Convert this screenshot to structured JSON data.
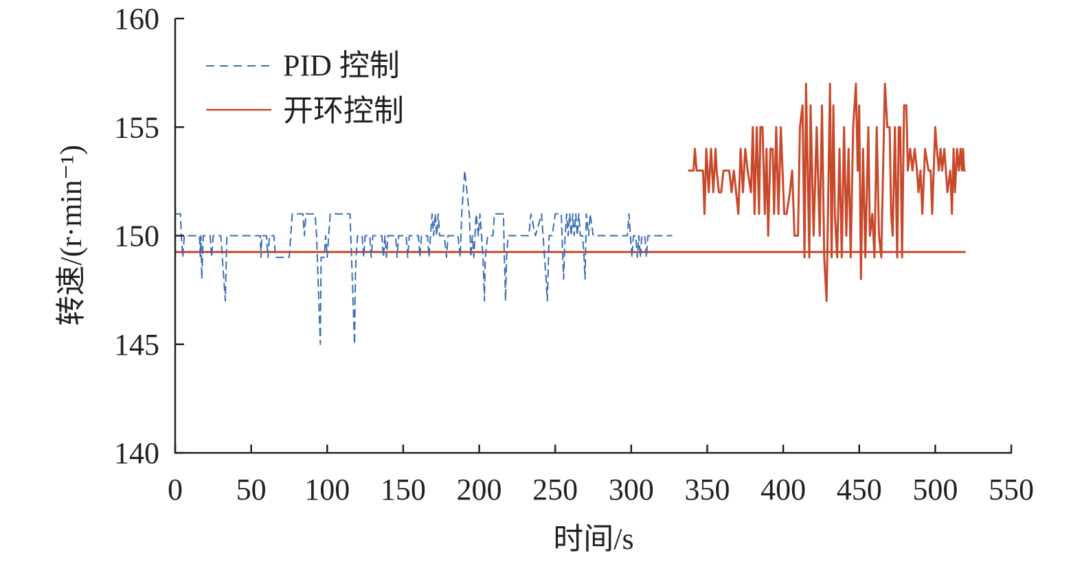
{
  "chart_data": {
    "type": "line",
    "xlabel": "时间/s",
    "ylabel": "转速/(r·min⁻¹)",
    "xlim": [
      0,
      550
    ],
    "ylim": [
      140,
      160
    ],
    "xticks": [
      "0",
      "50",
      "100",
      "150",
      "200",
      "250",
      "300",
      "350",
      "400",
      "450",
      "500",
      "550"
    ],
    "yticks": [
      "140",
      "145",
      "150",
      "155",
      "160"
    ],
    "grid": false,
    "legend_position": "top-left",
    "series": [
      {
        "name": "PID 控制",
        "color": "#3a6db3",
        "style": "dashed",
        "points": [
          [
            0,
            151
          ],
          [
            3.5,
            151
          ],
          [
            4,
            150
          ],
          [
            5,
            149
          ],
          [
            6,
            150
          ],
          [
            16,
            150
          ],
          [
            16.5,
            149
          ],
          [
            17,
            150
          ],
          [
            17.5,
            148
          ],
          [
            18,
            149
          ],
          [
            18.5,
            150
          ],
          [
            23,
            150
          ],
          [
            24,
            149
          ],
          [
            25,
            150
          ],
          [
            30,
            150
          ],
          [
            31,
            149
          ],
          [
            32,
            148
          ],
          [
            33,
            147
          ],
          [
            34,
            150
          ],
          [
            56,
            150
          ],
          [
            56.5,
            149
          ],
          [
            57,
            150
          ],
          [
            60,
            150
          ],
          [
            61,
            149
          ],
          [
            62,
            150
          ],
          [
            65,
            150
          ],
          [
            66,
            149
          ],
          [
            75,
            149
          ],
          [
            76,
            150
          ],
          [
            77,
            151
          ],
          [
            84,
            151
          ],
          [
            85,
            150
          ],
          [
            86,
            151
          ],
          [
            92,
            151
          ],
          [
            93,
            150
          ],
          [
            93.5,
            149
          ],
          [
            94,
            148
          ],
          [
            94.5,
            147
          ],
          [
            95,
            146
          ],
          [
            95.5,
            145
          ],
          [
            96,
            149
          ],
          [
            98,
            149
          ],
          [
            99,
            150
          ],
          [
            100,
            149
          ],
          [
            102,
            151
          ],
          [
            115,
            151
          ],
          [
            116,
            149
          ],
          [
            116.5,
            148
          ],
          [
            117,
            147
          ],
          [
            117.5,
            146
          ],
          [
            118,
            145
          ],
          [
            118.5,
            148
          ],
          [
            119,
            149
          ],
          [
            120,
            150
          ],
          [
            123,
            150
          ],
          [
            124,
            149
          ],
          [
            125,
            150
          ],
          [
            128,
            150
          ],
          [
            129,
            149
          ],
          [
            130,
            150
          ],
          [
            136,
            150
          ],
          [
            137,
            149
          ],
          [
            138,
            150
          ],
          [
            139,
            149
          ],
          [
            140,
            150
          ],
          [
            145,
            150
          ],
          [
            146,
            149
          ],
          [
            147,
            150
          ],
          [
            152,
            150
          ],
          [
            153,
            149
          ],
          [
            154,
            150
          ],
          [
            160,
            150
          ],
          [
            161,
            149
          ],
          [
            162,
            150
          ],
          [
            166,
            150
          ],
          [
            167,
            149
          ],
          [
            168,
            150
          ],
          [
            169,
            151
          ],
          [
            170,
            150
          ],
          [
            171,
            151
          ],
          [
            172,
            150
          ],
          [
            173,
            151
          ],
          [
            174,
            150
          ],
          [
            177,
            150
          ],
          [
            178.5,
            149
          ],
          [
            179.5,
            150
          ],
          [
            186,
            150
          ],
          [
            187.5,
            149
          ],
          [
            188.5,
            151
          ],
          [
            189.5,
            152
          ],
          [
            190.5,
            153
          ],
          [
            192,
            152
          ],
          [
            193.5,
            151
          ],
          [
            194.5,
            149
          ],
          [
            195.5,
            150
          ],
          [
            196.5,
            149
          ],
          [
            198,
            151
          ],
          [
            199.5,
            150
          ],
          [
            200.5,
            151
          ],
          [
            201.5,
            150
          ],
          [
            202.5,
            149
          ],
          [
            203,
            148
          ],
          [
            203.4,
            147
          ],
          [
            204,
            149
          ],
          [
            205.6,
            150
          ],
          [
            209,
            150
          ],
          [
            210,
            151
          ],
          [
            216,
            151
          ],
          [
            216.5,
            149
          ],
          [
            217,
            148
          ],
          [
            217.3,
            147
          ],
          [
            218,
            149
          ],
          [
            219,
            150
          ],
          [
            232.7,
            150
          ],
          [
            234,
            151
          ],
          [
            237,
            150
          ],
          [
            241,
            151
          ],
          [
            242,
            150
          ],
          [
            243,
            149
          ],
          [
            244,
            148
          ],
          [
            244.8,
            147
          ],
          [
            246,
            150
          ],
          [
            248,
            150
          ],
          [
            250,
            151
          ],
          [
            254,
            151
          ],
          [
            255,
            149
          ],
          [
            255.5,
            148
          ],
          [
            256.5,
            150
          ],
          [
            257.5,
            151
          ],
          [
            258.5,
            150
          ],
          [
            259.5,
            151
          ],
          [
            260.5,
            150
          ],
          [
            261.5,
            151
          ],
          [
            262.5,
            150
          ],
          [
            263.5,
            151
          ],
          [
            264.5,
            150
          ],
          [
            265.5,
            151
          ],
          [
            266.5,
            150
          ],
          [
            268,
            150
          ],
          [
            269,
            149
          ],
          [
            269.6,
            148
          ],
          [
            270.5,
            151
          ],
          [
            272,
            150
          ],
          [
            273,
            151
          ],
          [
            275,
            150
          ],
          [
            297.5,
            150
          ],
          [
            298.5,
            151
          ],
          [
            299.5,
            150
          ],
          [
            300.5,
            149
          ],
          [
            301.5,
            150
          ],
          [
            303,
            150
          ],
          [
            304,
            149
          ],
          [
            305,
            150
          ],
          [
            306,
            149
          ],
          [
            307,
            150
          ],
          [
            309,
            150
          ],
          [
            310,
            149
          ],
          [
            311,
            150
          ],
          [
            327,
            150
          ]
        ]
      },
      {
        "name": "开环控制",
        "color": "#c8482a",
        "style": "solid",
        "points": [
          [
            337.4,
            153
          ],
          [
            341,
            153
          ],
          [
            341.9,
            154
          ],
          [
            343,
            153
          ],
          [
            347.2,
            153
          ],
          [
            348.2,
            151
          ],
          [
            349.4,
            154
          ],
          [
            351,
            152
          ],
          [
            352.5,
            154
          ],
          [
            354,
            152
          ],
          [
            355.5,
            154
          ],
          [
            356.2,
            153
          ],
          [
            357.7,
            152
          ],
          [
            359.2,
            152
          ],
          [
            360.7,
            153
          ],
          [
            364.5,
            153
          ],
          [
            366,
            152
          ],
          [
            367.5,
            153
          ],
          [
            370.5,
            151
          ],
          [
            372,
            154
          ],
          [
            373.5,
            152
          ],
          [
            375,
            154
          ],
          [
            376.6,
            153
          ],
          [
            378.8,
            152
          ],
          [
            380,
            155
          ],
          [
            381.1,
            151
          ],
          [
            382.6,
            155
          ],
          [
            384.1,
            151
          ],
          [
            385,
            155
          ],
          [
            386.4,
            155
          ],
          [
            387.9,
            151
          ],
          [
            389,
            154
          ],
          [
            390.1,
            150
          ],
          [
            391.6,
            154
          ],
          [
            393.1,
            154
          ],
          [
            394,
            151
          ],
          [
            395.4,
            155
          ],
          [
            396.9,
            151
          ],
          [
            398.4,
            155
          ],
          [
            400.7,
            151
          ],
          [
            402.2,
            151
          ],
          [
            404.4,
            152
          ],
          [
            405.9,
            153
          ],
          [
            407.4,
            150
          ],
          [
            409.7,
            150
          ],
          [
            411,
            155
          ],
          [
            412.7,
            156
          ],
          [
            414,
            149
          ],
          [
            415,
            157
          ],
          [
            417.2,
            149
          ],
          [
            418,
            156
          ],
          [
            420,
            150
          ],
          [
            422,
            155
          ],
          [
            424,
            150
          ],
          [
            425.5,
            156
          ],
          [
            427,
            149
          ],
          [
            428.5,
            147
          ],
          [
            430.8,
            157
          ],
          [
            431.8,
            149
          ],
          [
            433,
            156
          ],
          [
            434,
            151
          ],
          [
            435.5,
            149
          ],
          [
            437,
            154
          ],
          [
            438.5,
            149
          ],
          [
            440,
            155
          ],
          [
            441.5,
            150
          ],
          [
            443,
            154
          ],
          [
            444.4,
            149
          ],
          [
            446,
            155
          ],
          [
            447.8,
            157
          ],
          [
            449,
            153
          ],
          [
            450,
            156
          ],
          [
            451.1,
            148
          ],
          [
            452.5,
            154
          ],
          [
            454,
            149
          ],
          [
            456,
            155
          ],
          [
            457,
            150
          ],
          [
            458.6,
            151
          ],
          [
            460,
            149
          ],
          [
            461.5,
            155
          ],
          [
            463,
            150
          ],
          [
            464.5,
            149
          ],
          [
            466,
            154
          ],
          [
            466.9,
            157
          ],
          [
            468.5,
            155
          ],
          [
            470,
            155
          ],
          [
            471,
            151
          ],
          [
            472,
            150
          ],
          [
            473.5,
            155
          ],
          [
            475,
            149
          ],
          [
            476,
            155
          ],
          [
            477,
            155
          ],
          [
            478.2,
            149
          ],
          [
            479.5,
            156
          ],
          [
            481,
            156
          ],
          [
            482,
            153
          ],
          [
            483.5,
            154
          ],
          [
            485,
            153
          ],
          [
            486.5,
            154
          ],
          [
            488,
            153
          ],
          [
            489,
            152
          ],
          [
            490.3,
            153
          ],
          [
            491.5,
            151
          ],
          [
            493.3,
            154
          ],
          [
            495.6,
            153
          ],
          [
            497,
            153
          ],
          [
            498,
            151
          ],
          [
            500,
            155
          ],
          [
            501,
            154
          ],
          [
            502.4,
            153
          ],
          [
            503.5,
            154
          ],
          [
            504.6,
            153
          ],
          [
            506,
            154
          ],
          [
            507,
            153
          ],
          [
            508,
            152
          ],
          [
            509.9,
            153
          ],
          [
            511,
            151
          ],
          [
            512.1,
            154
          ],
          [
            513,
            152
          ],
          [
            514.4,
            154
          ],
          [
            515.5,
            153
          ],
          [
            516.7,
            154
          ],
          [
            517.5,
            153
          ],
          [
            518.3,
            154
          ],
          [
            519,
            153
          ],
          [
            520,
            153
          ]
        ]
      },
      {
        "color": "#c8482a",
        "style": "solid",
        "points": [
          [
            0,
            149.25
          ],
          [
            520,
            149.25
          ]
        ]
      }
    ]
  }
}
